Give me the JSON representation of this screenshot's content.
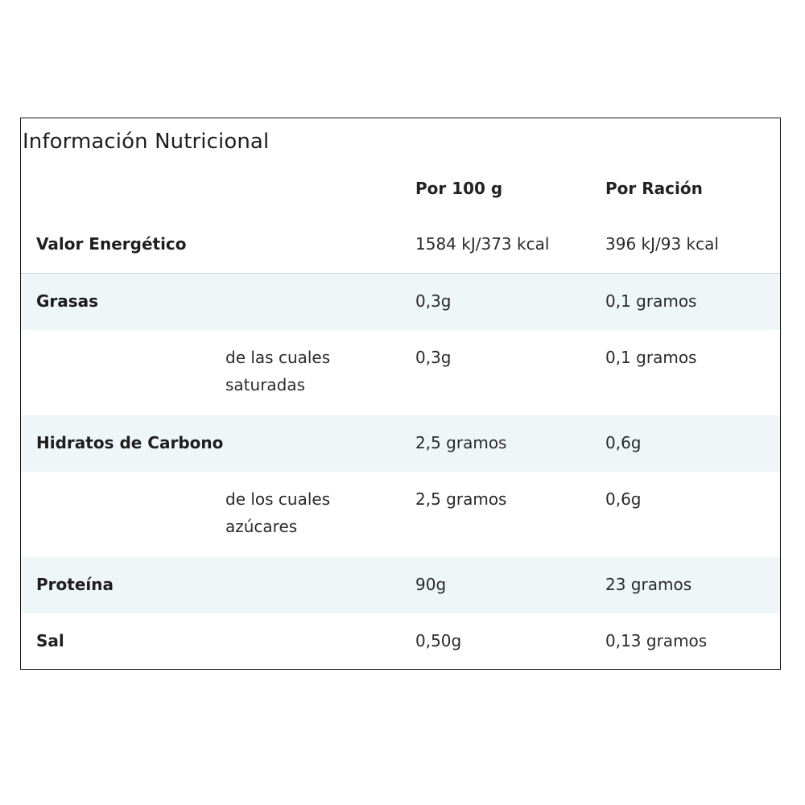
{
  "table": {
    "title": "Información Nutricional",
    "headers": {
      "per_100g": "Por 100 g",
      "per_serving": "Por Ración"
    },
    "rows": [
      {
        "name": "Valor Energético",
        "per_100g": "1584 kJ/373 kcal",
        "per_serving": "396 kJ/93 kcal"
      },
      {
        "name": "Grasas",
        "per_100g": "0,3g",
        "per_serving": "0,1 gramos"
      },
      {
        "name": "de las cuales saturadas",
        "per_100g": "0,3g",
        "per_serving": "0,1 gramos"
      },
      {
        "name": "Hidratos de Carbono",
        "per_100g": "2,5 gramos",
        "per_serving": "0,6g"
      },
      {
        "name": "de los cuales azúcares",
        "per_100g": "2,5 gramos",
        "per_serving": "0,6g"
      },
      {
        "name": "Proteína",
        "per_100g": "90g",
        "per_serving": "23 gramos"
      },
      {
        "name": "Sal",
        "per_100g": "0,50g",
        "per_serving": "0,13 gramos"
      }
    ]
  }
}
